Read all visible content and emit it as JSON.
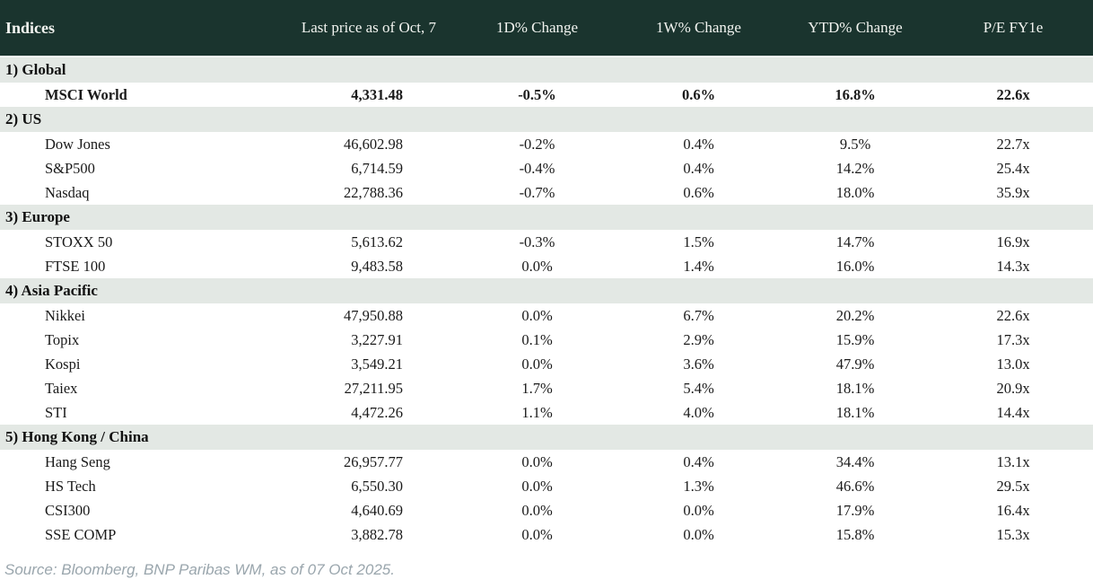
{
  "colors": {
    "header_background": "#1a342e",
    "header_text": "#f2f4f0",
    "section_background": "#e3e8e4",
    "negative": "#c00000",
    "positive": "#008000",
    "neutral": "#1a1a1a",
    "source_text": "#9aa6ad"
  },
  "table": {
    "columns": [
      {
        "label": "Indices"
      },
      {
        "label": "Last price as of Oct, 7"
      },
      {
        "label": "1D% Change"
      },
      {
        "label": "1W% Change"
      },
      {
        "label": "YTD% Change"
      },
      {
        "label": "P/E FY1e"
      }
    ],
    "sections": [
      {
        "label": "1) Global",
        "rows": [
          {
            "name": "MSCI World",
            "bold": true,
            "values": [
              {
                "text": "4,331.48",
                "cls": "num"
              },
              {
                "text": "-0.5%",
                "cls": "neg"
              },
              {
                "text": "0.6%",
                "cls": "pos"
              },
              {
                "text": "16.8%",
                "cls": "pos"
              },
              {
                "text": "22.6x",
                "cls": "num"
              }
            ]
          }
        ]
      },
      {
        "label": "2) US",
        "rows": [
          {
            "name": "Dow Jones",
            "bold": false,
            "values": [
              {
                "text": "46,602.98",
                "cls": "num"
              },
              {
                "text": "-0.2%",
                "cls": "neg"
              },
              {
                "text": "0.4%",
                "cls": "pos"
              },
              {
                "text": "9.5%",
                "cls": "pos"
              },
              {
                "text": "22.7x",
                "cls": "num"
              }
            ]
          },
          {
            "name": "S&P500",
            "bold": false,
            "values": [
              {
                "text": "6,714.59",
                "cls": "num"
              },
              {
                "text": "-0.4%",
                "cls": "neg"
              },
              {
                "text": "0.4%",
                "cls": "pos"
              },
              {
                "text": "14.2%",
                "cls": "pos"
              },
              {
                "text": "25.4x",
                "cls": "num"
              }
            ]
          },
          {
            "name": "Nasdaq",
            "bold": false,
            "values": [
              {
                "text": "22,788.36",
                "cls": "num"
              },
              {
                "text": "-0.7%",
                "cls": "neg"
              },
              {
                "text": "0.6%",
                "cls": "pos"
              },
              {
                "text": "18.0%",
                "cls": "pos"
              },
              {
                "text": "35.9x",
                "cls": "num"
              }
            ]
          }
        ]
      },
      {
        "label": "3) Europe",
        "rows": [
          {
            "name": "STOXX 50",
            "bold": false,
            "values": [
              {
                "text": "5,613.62",
                "cls": "num"
              },
              {
                "text": "-0.3%",
                "cls": "neg"
              },
              {
                "text": "1.5%",
                "cls": "pos"
              },
              {
                "text": "14.7%",
                "cls": "pos"
              },
              {
                "text": "16.9x",
                "cls": "num"
              }
            ]
          },
          {
            "name": "FTSE 100",
            "bold": false,
            "values": [
              {
                "text": "9,483.58",
                "cls": "num"
              },
              {
                "text": "0.0%",
                "cls": "pos"
              },
              {
                "text": "1.4%",
                "cls": "pos"
              },
              {
                "text": "16.0%",
                "cls": "pos"
              },
              {
                "text": "14.3x",
                "cls": "num"
              }
            ]
          }
        ]
      },
      {
        "label": "4) Asia Pacific",
        "rows": [
          {
            "name": "Nikkei",
            "bold": false,
            "values": [
              {
                "text": "47,950.88",
                "cls": "num"
              },
              {
                "text": "0.0%",
                "cls": "pos"
              },
              {
                "text": "6.7%",
                "cls": "pos"
              },
              {
                "text": "20.2%",
                "cls": "pos"
              },
              {
                "text": "22.6x",
                "cls": "num"
              }
            ]
          },
          {
            "name": "Topix",
            "bold": false,
            "values": [
              {
                "text": "3,227.91",
                "cls": "num"
              },
              {
                "text": "0.1%",
                "cls": "pos"
              },
              {
                "text": "2.9%",
                "cls": "pos"
              },
              {
                "text": "15.9%",
                "cls": "pos"
              },
              {
                "text": "17.3x",
                "cls": "num"
              }
            ]
          },
          {
            "name": "Kospi",
            "bold": false,
            "values": [
              {
                "text": "3,549.21",
                "cls": "num"
              },
              {
                "text": "0.0%",
                "cls": "flat"
              },
              {
                "text": "3.6%",
                "cls": "pos"
              },
              {
                "text": "47.9%",
                "cls": "pos"
              },
              {
                "text": "13.0x",
                "cls": "num"
              }
            ]
          },
          {
            "name": "Taiex",
            "bold": false,
            "values": [
              {
                "text": "27,211.95",
                "cls": "num"
              },
              {
                "text": "1.7%",
                "cls": "pos"
              },
              {
                "text": "5.4%",
                "cls": "pos"
              },
              {
                "text": "18.1%",
                "cls": "pos"
              },
              {
                "text": "20.9x",
                "cls": "num"
              }
            ]
          },
          {
            "name": "STI",
            "bold": false,
            "values": [
              {
                "text": "4,472.26",
                "cls": "num"
              },
              {
                "text": "1.1%",
                "cls": "pos"
              },
              {
                "text": "4.0%",
                "cls": "pos"
              },
              {
                "text": "18.1%",
                "cls": "pos"
              },
              {
                "text": "14.4x",
                "cls": "num"
              }
            ]
          }
        ]
      },
      {
        "label": "5) Hong Kong / China",
        "rows": [
          {
            "name": "Hang Seng",
            "bold": false,
            "values": [
              {
                "text": "26,957.77",
                "cls": "num"
              },
              {
                "text": "0.0%",
                "cls": "flat"
              },
              {
                "text": "0.4%",
                "cls": "pos"
              },
              {
                "text": "34.4%",
                "cls": "pos"
              },
              {
                "text": "13.1x",
                "cls": "num"
              }
            ]
          },
          {
            "name": "HS Tech",
            "bold": false,
            "values": [
              {
                "text": "6,550.30",
                "cls": "num"
              },
              {
                "text": "0.0%",
                "cls": "flat"
              },
              {
                "text": "1.3%",
                "cls": "pos"
              },
              {
                "text": "46.6%",
                "cls": "pos"
              },
              {
                "text": "29.5x",
                "cls": "num"
              }
            ]
          },
          {
            "name": "CSI300",
            "bold": false,
            "values": [
              {
                "text": "4,640.69",
                "cls": "num"
              },
              {
                "text": "0.0%",
                "cls": "flat"
              },
              {
                "text": "0.0%",
                "cls": "flat"
              },
              {
                "text": "17.9%",
                "cls": "pos"
              },
              {
                "text": "16.4x",
                "cls": "num"
              }
            ]
          },
          {
            "name": "SSE COMP",
            "bold": false,
            "values": [
              {
                "text": "3,882.78",
                "cls": "num"
              },
              {
                "text": "0.0%",
                "cls": "flat"
              },
              {
                "text": "0.0%",
                "cls": "flat"
              },
              {
                "text": "15.8%",
                "cls": "pos"
              },
              {
                "text": "15.3x",
                "cls": "num"
              }
            ]
          }
        ]
      }
    ]
  },
  "source_note": "Source: Bloomberg, BNP Paribas WM, as of 07 Oct 2025."
}
